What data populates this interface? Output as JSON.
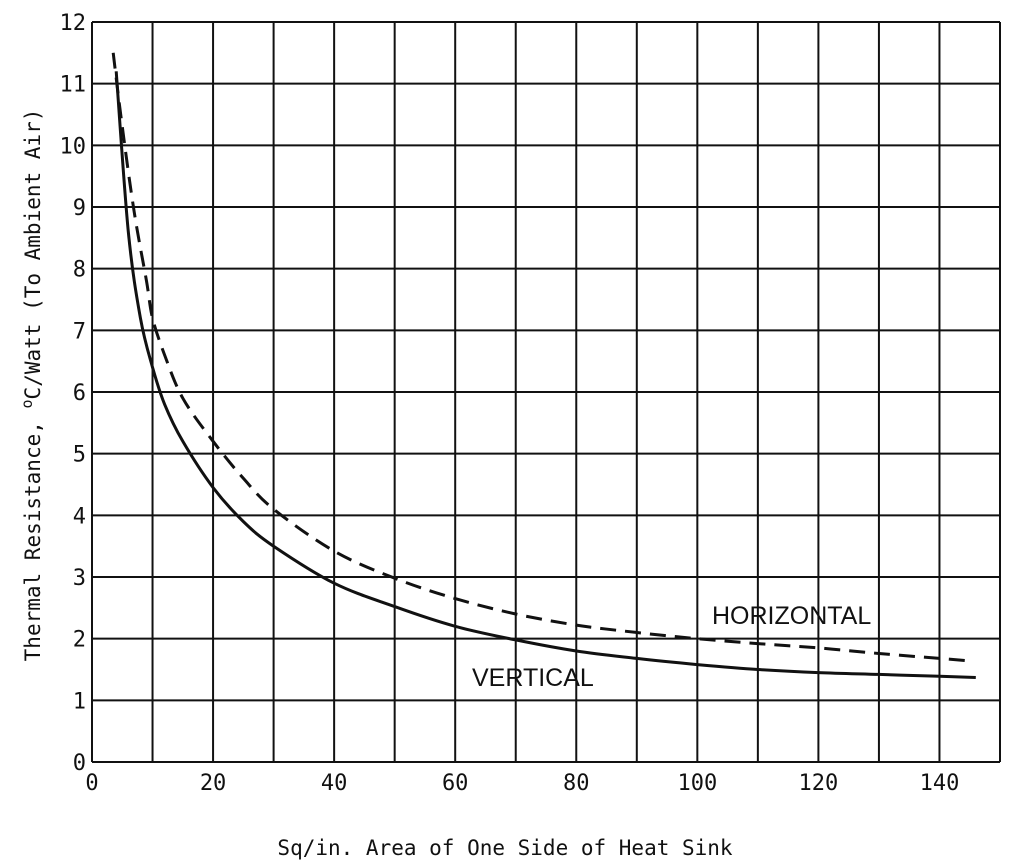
{
  "chart_data": {
    "type": "line",
    "title": "",
    "xlabel": "Sq/in. Area of One Side of Heat Sink",
    "ylabel_main": "Thermal Resistance, ",
    "ylabel_sup": "o",
    "ylabel_rest": "C/Watt (To Ambient Air)",
    "xlim": [
      0,
      150
    ],
    "ylim": [
      0,
      12
    ],
    "x_ticks": [
      0,
      20,
      40,
      60,
      80,
      100,
      120,
      140
    ],
    "x_tick_labels": [
      "0",
      "20",
      "40",
      "60",
      "80",
      "100",
      "120",
      "140"
    ],
    "y_ticks": [
      0,
      1,
      2,
      3,
      4,
      5,
      6,
      7,
      8,
      9,
      10,
      11,
      12
    ],
    "y_tick_labels": [
      "0",
      "1",
      "2",
      "3",
      "4",
      "5",
      "6",
      "7",
      "8",
      "9",
      "10",
      "11",
      "12"
    ],
    "grid": true,
    "series": [
      {
        "name": "VERTICAL",
        "style": "solid",
        "points": [
          [
            4,
            11.2
          ],
          [
            6,
            8.6
          ],
          [
            8,
            7.2
          ],
          [
            10,
            6.4
          ],
          [
            12,
            5.8
          ],
          [
            15,
            5.2
          ],
          [
            20,
            4.45
          ],
          [
            25,
            3.9
          ],
          [
            30,
            3.5
          ],
          [
            40,
            2.9
          ],
          [
            50,
            2.52
          ],
          [
            60,
            2.2
          ],
          [
            70,
            1.98
          ],
          [
            80,
            1.8
          ],
          [
            90,
            1.68
          ],
          [
            100,
            1.58
          ],
          [
            110,
            1.5
          ],
          [
            120,
            1.45
          ],
          [
            130,
            1.42
          ],
          [
            140,
            1.39
          ],
          [
            146,
            1.37
          ]
        ]
      },
      {
        "name": "HORIZONTAL",
        "style": "dashed",
        "points": [
          [
            3.5,
            11.5
          ],
          [
            5,
            10.3
          ],
          [
            7,
            8.9
          ],
          [
            9,
            7.8
          ],
          [
            10,
            7.2
          ],
          [
            12,
            6.6
          ],
          [
            15,
            5.9
          ],
          [
            20,
            5.2
          ],
          [
            25,
            4.6
          ],
          [
            30,
            4.1
          ],
          [
            40,
            3.42
          ],
          [
            50,
            2.98
          ],
          [
            60,
            2.65
          ],
          [
            70,
            2.4
          ],
          [
            80,
            2.22
          ],
          [
            90,
            2.1
          ],
          [
            100,
            2.0
          ],
          [
            110,
            1.92
          ],
          [
            120,
            1.85
          ],
          [
            130,
            1.76
          ],
          [
            140,
            1.68
          ],
          [
            145,
            1.64
          ]
        ]
      }
    ]
  }
}
